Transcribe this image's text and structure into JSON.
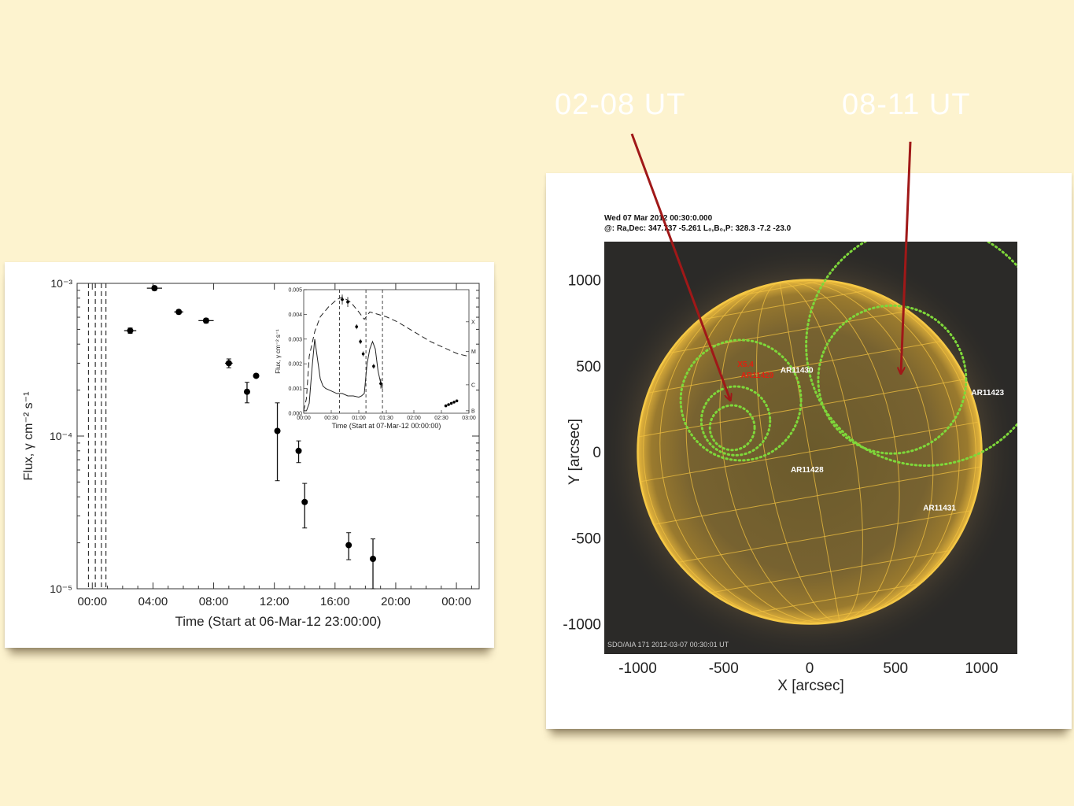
{
  "annotations": [
    {
      "label": "02-08 UT"
    },
    {
      "label": "08-11 UT"
    }
  ],
  "chart_data": [
    {
      "type": "scatter",
      "xlabel": "Time (Start at 06-Mar-12 23:00:00)",
      "ylabel": "Flux, γ cm⁻² s⁻¹",
      "yscale": "log",
      "ylim": [
        1e-05,
        0.001
      ],
      "xlim": [
        0,
        26.5
      ],
      "x_tick_labels": [
        "00:00",
        "04:00",
        "08:00",
        "12:00",
        "16:00",
        "20:00",
        "00:00"
      ],
      "y_tick_labels": [
        "10⁻⁵",
        "10⁻⁴",
        "10⁻³"
      ],
      "vlines": [
        0.75,
        1.2,
        1.6,
        1.9
      ],
      "points": [
        {
          "x": 3.5,
          "y": 0.00049,
          "xerr": 0.4,
          "ylo": 0.00047,
          "yhi": 0.00051
        },
        {
          "x": 5.1,
          "y": 0.00093,
          "xerr": 0.5,
          "ylo": 0.0009,
          "yhi": 0.00096
        },
        {
          "x": 6.7,
          "y": 0.00065,
          "xerr": 0.3,
          "ylo": 0.00063,
          "yhi": 0.00067
        },
        {
          "x": 8.5,
          "y": 0.00057,
          "xerr": 0.5,
          "ylo": 0.00055,
          "yhi": 0.00059
        },
        {
          "x": 10.0,
          "y": 0.0003,
          "xerr": 0.25,
          "ylo": 0.00028,
          "yhi": 0.00032
        },
        {
          "x": 11.2,
          "y": 0.000195,
          "xerr": 0.1,
          "ylo": 0.000165,
          "yhi": 0.000225
        },
        {
          "x": 11.8,
          "y": 0.000248,
          "xerr": 0.15,
          "ylo": 0.000242,
          "yhi": 0.000254
        },
        {
          "x": 13.2,
          "y": 0.000108,
          "xerr": 0,
          "ylo": 5.1e-05,
          "yhi": 0.000165
        },
        {
          "x": 14.6,
          "y": 8e-05,
          "xerr": 0,
          "ylo": 6.7e-05,
          "yhi": 9.3e-05
        },
        {
          "x": 15.0,
          "y": 3.7e-05,
          "xerr": 0,
          "ylo": 2.5e-05,
          "yhi": 4.9e-05
        },
        {
          "x": 17.9,
          "y": 1.93e-05,
          "xerr": 0,
          "ylo": 1.55e-05,
          "yhi": 2.33e-05
        },
        {
          "x": 19.5,
          "y": 1.57e-05,
          "xerr": 0,
          "ylo": 1e-05,
          "yhi": 2.12e-05
        }
      ],
      "inset": {
        "type": "line",
        "xlabel": "Time (Start at 07-Mar-12 00:00:00)",
        "ylabel": "Flux, γ cm⁻² s⁻¹",
        "xlim": [
          0,
          3
        ],
        "ylim": [
          0,
          0.005
        ],
        "x_tick_labels": [
          "00:00",
          "00:30",
          "01:00",
          "01:30",
          "02:00",
          "02:30",
          "03:00"
        ],
        "y_tick_labels": [
          "0.000",
          "0.001",
          "0.002",
          "0.003",
          "0.004",
          "0.005"
        ],
        "right_tick_labels": [
          "B",
          "C",
          "M",
          "X"
        ],
        "vlines": [
          0.65,
          1.13,
          1.43
        ],
        "series": [
          {
            "style": "solid",
            "x": [
              0,
              0.05,
              0.1,
              0.15,
              0.2,
              0.25,
              0.3,
              0.35,
              0.4,
              0.5,
              0.6,
              0.7,
              0.8,
              0.9,
              1.0,
              1.05,
              1.1,
              1.15,
              1.2,
              1.25,
              1.3,
              1.35,
              1.4,
              1.43
            ],
            "y": [
              0.0001,
              0.0001,
              0.0004,
              0.0018,
              0.003,
              0.0022,
              0.0014,
              0.0011,
              0.001,
              0.0009,
              0.0008,
              0.0008,
              0.0007,
              0.0007,
              0.00065,
              0.0007,
              0.0008,
              0.002,
              0.0026,
              0.0029,
              0.0026,
              0.0017,
              0.0012,
              0.001
            ]
          },
          {
            "style": "dashed",
            "x": [
              0,
              0.05,
              0.1,
              0.2,
              0.3,
              0.45,
              0.6,
              0.7,
              0.85,
              1.0,
              1.1,
              1.2,
              1.35,
              1.5,
              1.7,
              2.0,
              2.3,
              2.6,
              2.8,
              3.0
            ],
            "y": [
              0.0001,
              0.0006,
              0.0023,
              0.0033,
              0.0039,
              0.0043,
              0.0046,
              0.0047,
              0.0045,
              0.0041,
              0.0038,
              0.0041,
              0.004,
              0.0039,
              0.0037,
              0.0033,
              0.0029,
              0.0026,
              0.0024,
              0.0023
            ]
          }
        ],
        "points": [
          {
            "x": 0.7,
            "y": 0.0046,
            "xerr": 0.03,
            "yerr": 0.0002
          },
          {
            "x": 0.8,
            "y": 0.0045,
            "xerr": 0.03,
            "yerr": 0.0002
          },
          {
            "x": 0.96,
            "y": 0.0035,
            "xerr": 0.02,
            "yerr": 0.0001
          },
          {
            "x": 1.03,
            "y": 0.0029,
            "xerr": 0.02,
            "yerr": 0.0001
          },
          {
            "x": 1.08,
            "y": 0.0024,
            "xerr": 0.02,
            "yerr": 0.0001
          },
          {
            "x": 1.27,
            "y": 0.0019,
            "xerr": 0.02,
            "yerr": 0.0001
          },
          {
            "x": 1.4,
            "y": 0.0012,
            "xerr": 0.03,
            "yerr": 0.0002
          },
          {
            "x": 2.58,
            "y": 0.0003,
            "xerr": 0.01,
            "yerr": 3e-05
          },
          {
            "x": 2.63,
            "y": 0.00035,
            "xerr": 0.01,
            "yerr": 3e-05
          },
          {
            "x": 2.68,
            "y": 0.0004,
            "xerr": 0.01,
            "yerr": 3e-05
          },
          {
            "x": 2.73,
            "y": 0.00045,
            "xerr": 0.01,
            "yerr": 3e-05
          },
          {
            "x": 2.78,
            "y": 0.0005,
            "xerr": 0.01,
            "yerr": 4e-05
          }
        ]
      }
    },
    {
      "type": "image",
      "header_line1": "Wed 07 Mar 2012  00:30:0.000",
      "header_line2": "@: Ra,Dec: 347.737 -5.261   L₀,B₀,P: 328.3 -7.2 -23.0",
      "footer": "SDO/AIA  171   2012-03-07 00:30:01 UT",
      "xlabel": "X [arcsec]",
      "ylabel": "Y [arcsec]",
      "xlim": [
        -1200,
        1200
      ],
      "ylim": [
        -1200,
        1200
      ],
      "x_tick_labels": [
        "-1000",
        "-500",
        "0",
        "500",
        "1000"
      ],
      "y_tick_labels": [
        "1000",
        "500",
        "0",
        "-500",
        "-1000"
      ],
      "solar_radius": 1000,
      "regions": [
        {
          "label": "X5.4",
          "x": -420,
          "y": 495,
          "color": "#e02010"
        },
        {
          "label": "AR11429",
          "x": -400,
          "y": 430,
          "color": "#e02010"
        },
        {
          "label": "AR11430",
          "x": -170,
          "y": 460,
          "color": "#ffffff"
        },
        {
          "label": "AR11423",
          "x": 940,
          "y": 330,
          "color": "#ffffff"
        },
        {
          "label": "AR11428",
          "x": -110,
          "y": -120,
          "color": "#ffffff"
        },
        {
          "label": "AR11431",
          "x": 660,
          "y": -340,
          "color": "#ffffff"
        }
      ],
      "circles": [
        {
          "cx": -400,
          "cy": 300,
          "r": 350
        },
        {
          "cx": -430,
          "cy": 180,
          "r": 200
        },
        {
          "cx": -450,
          "cy": 140,
          "r": 130
        },
        {
          "cx": 480,
          "cy": 420,
          "r": 430
        },
        {
          "cx": 680,
          "cy": 620,
          "r": 700
        }
      ],
      "color_accent": "#f0c040"
    }
  ]
}
